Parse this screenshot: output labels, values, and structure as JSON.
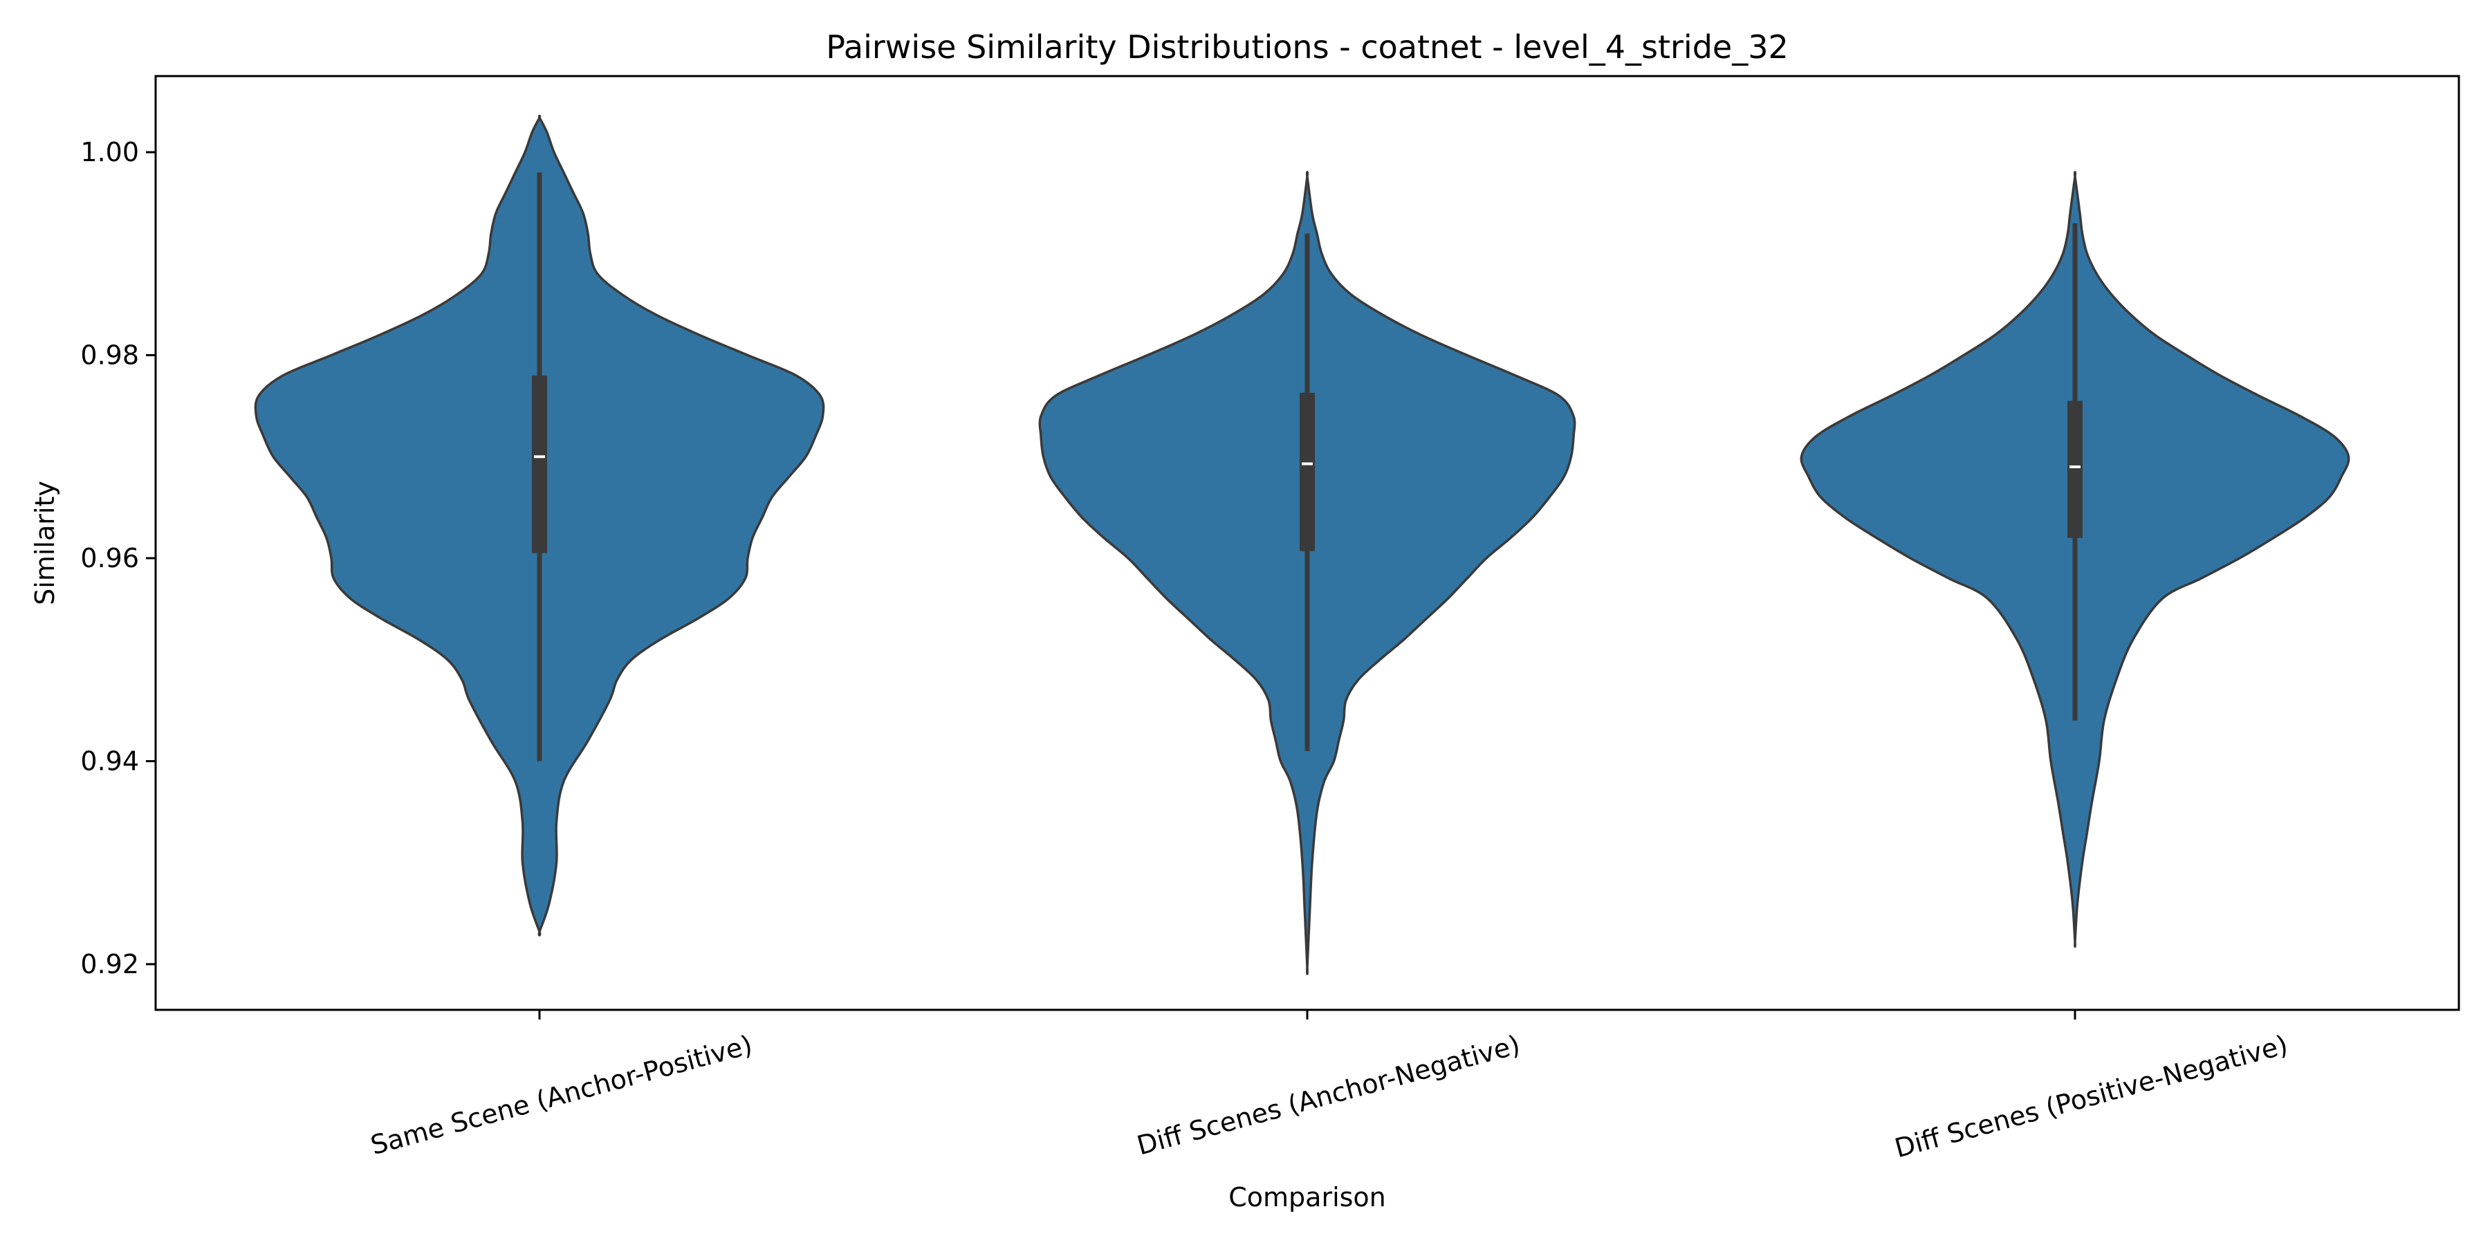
{
  "chart_data": {
    "type": "violin",
    "title": "Pairwise Similarity Distributions - coatnet - level_4_stride_32",
    "xlabel": "Comparison",
    "ylabel": "Similarity",
    "ylim": [
      0.9155,
      1.0075
    ],
    "yticks": [
      0.92,
      0.94,
      0.96,
      0.98,
      1.0
    ],
    "ytick_labels": [
      "0.92",
      "0.94",
      "0.96",
      "0.98",
      "1.00"
    ],
    "categories": [
      "Same Scene (Anchor-Positive)",
      "Diff Scenes (Anchor-Negative)",
      "Diff Scenes (Positive-Negative)"
    ],
    "xtick_rotation_deg": 15,
    "grid": false,
    "legend": "none",
    "colors": {
      "violin_fill": "#3274a1",
      "violin_edge": "#3a3a3a",
      "box": "#3a3a3a",
      "median": "#ffffff",
      "axes": "#000000"
    },
    "violins": [
      {
        "category": "Same Scene (Anchor-Positive)",
        "min": 0.9232,
        "max": 1.0034,
        "whisker_low": 0.94,
        "q1": 0.9605,
        "median": 0.97,
        "q3": 0.978,
        "whisker_high": 0.998,
        "density_profile": [
          [
            0.9232,
            0.0
          ],
          [
            0.926,
            0.04
          ],
          [
            0.93,
            0.07
          ],
          [
            0.934,
            0.07
          ],
          [
            0.938,
            0.1
          ],
          [
            0.942,
            0.2
          ],
          [
            0.946,
            0.29
          ],
          [
            0.948,
            0.32
          ],
          [
            0.95,
            0.38
          ],
          [
            0.952,
            0.5
          ],
          [
            0.954,
            0.65
          ],
          [
            0.956,
            0.78
          ],
          [
            0.958,
            0.85
          ],
          [
            0.96,
            0.86
          ],
          [
            0.962,
            0.88
          ],
          [
            0.964,
            0.92
          ],
          [
            0.966,
            0.96
          ],
          [
            0.968,
            1.03
          ],
          [
            0.97,
            1.1
          ],
          [
            0.972,
            1.14
          ],
          [
            0.974,
            1.17
          ],
          [
            0.976,
            1.16
          ],
          [
            0.978,
            1.06
          ],
          [
            0.98,
            0.86
          ],
          [
            0.982,
            0.66
          ],
          [
            0.984,
            0.48
          ],
          [
            0.986,
            0.34
          ],
          [
            0.988,
            0.24
          ],
          [
            0.99,
            0.21
          ],
          [
            0.992,
            0.2
          ],
          [
            0.994,
            0.18
          ],
          [
            0.996,
            0.14
          ],
          [
            0.998,
            0.1
          ],
          [
            1.0,
            0.06
          ],
          [
            1.002,
            0.03
          ],
          [
            1.0034,
            0.0
          ]
        ]
      },
      {
        "category": "Diff Scenes (Anchor-Negative)",
        "min": 0.9197,
        "max": 0.9976,
        "whisker_low": 0.941,
        "q1": 0.9607,
        "median": 0.9693,
        "q3": 0.9763,
        "whisker_high": 0.992,
        "density_profile": [
          [
            0.9197,
            0.0
          ],
          [
            0.925,
            0.01
          ],
          [
            0.93,
            0.02
          ],
          [
            0.935,
            0.04
          ],
          [
            0.938,
            0.07
          ],
          [
            0.94,
            0.11
          ],
          [
            0.942,
            0.13
          ],
          [
            0.944,
            0.15
          ],
          [
            0.946,
            0.16
          ],
          [
            0.948,
            0.21
          ],
          [
            0.95,
            0.3
          ],
          [
            0.952,
            0.4
          ],
          [
            0.954,
            0.49
          ],
          [
            0.956,
            0.58
          ],
          [
            0.958,
            0.66
          ],
          [
            0.96,
            0.74
          ],
          [
            0.962,
            0.84
          ],
          [
            0.964,
            0.93
          ],
          [
            0.966,
            1.0
          ],
          [
            0.968,
            1.06
          ],
          [
            0.97,
            1.09
          ],
          [
            0.972,
            1.1
          ],
          [
            0.974,
            1.1
          ],
          [
            0.976,
            1.04
          ],
          [
            0.978,
            0.86
          ],
          [
            0.98,
            0.66
          ],
          [
            0.982,
            0.47
          ],
          [
            0.984,
            0.31
          ],
          [
            0.986,
            0.18
          ],
          [
            0.988,
            0.1
          ],
          [
            0.99,
            0.06
          ],
          [
            0.992,
            0.04
          ],
          [
            0.994,
            0.02
          ],
          [
            0.9976,
            0.0
          ]
        ]
      },
      {
        "category": "Diff Scenes (Positive-Negative)",
        "min": 0.9222,
        "max": 0.9976,
        "whisker_low": 0.944,
        "q1": 0.962,
        "median": 0.969,
        "q3": 0.9755,
        "whisker_high": 0.993,
        "density_profile": [
          [
            0.9222,
            0.0
          ],
          [
            0.926,
            0.01
          ],
          [
            0.93,
            0.03
          ],
          [
            0.933,
            0.05
          ],
          [
            0.936,
            0.07
          ],
          [
            0.94,
            0.1
          ],
          [
            0.944,
            0.12
          ],
          [
            0.948,
            0.17
          ],
          [
            0.952,
            0.24
          ],
          [
            0.956,
            0.36
          ],
          [
            0.958,
            0.52
          ],
          [
            0.96,
            0.68
          ],
          [
            0.962,
            0.82
          ],
          [
            0.964,
            0.95
          ],
          [
            0.966,
            1.05
          ],
          [
            0.968,
            1.1
          ],
          [
            0.97,
            1.13
          ],
          [
            0.972,
            1.07
          ],
          [
            0.974,
            0.93
          ],
          [
            0.976,
            0.76
          ],
          [
            0.978,
            0.6
          ],
          [
            0.98,
            0.46
          ],
          [
            0.982,
            0.33
          ],
          [
            0.984,
            0.23
          ],
          [
            0.986,
            0.15
          ],
          [
            0.988,
            0.09
          ],
          [
            0.99,
            0.05
          ],
          [
            0.992,
            0.03
          ],
          [
            0.994,
            0.02
          ],
          [
            0.9976,
            0.0
          ]
        ]
      }
    ]
  }
}
